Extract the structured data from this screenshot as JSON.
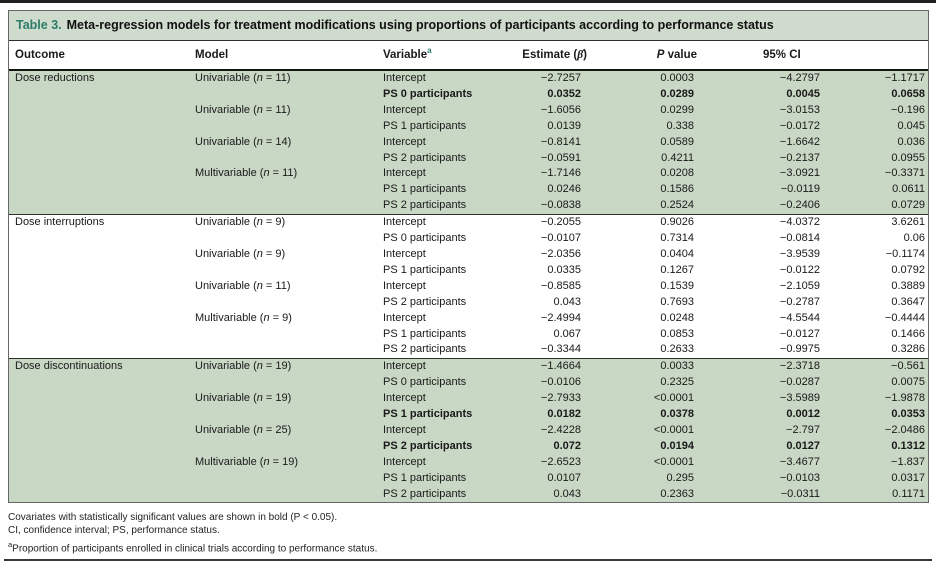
{
  "accent_colors": {
    "teal": "#2d7c6b",
    "band_green": "#c9d7c5",
    "title_bg": "#cfdbcc"
  },
  "table": {
    "title_label": "Table 3.",
    "title_text": "Meta-regression models for treatment modifications using proportions of participants according to performance status",
    "n_symbol": "n",
    "headers": {
      "outcome": "Outcome",
      "model": "Model",
      "variable": "Variable",
      "variable_sup": "a",
      "estimate_prefix": "Estimate (",
      "estimate_beta": "β̂",
      "estimate_suffix": ")",
      "p_italic": "P",
      "p_rest": " value",
      "ci": "95% CI"
    },
    "sections": [
      {
        "outcome": "Dose reductions",
        "shaded": true,
        "rows": [
          {
            "model": "Univariable",
            "n": "11",
            "variable": "Intercept",
            "estimate": "−2.7257",
            "p": "0.0003",
            "ci_low": "−4.2797",
            "ci_high": "−1.1717",
            "bold": false
          },
          {
            "model": "",
            "n": "",
            "variable": "PS 0 participants",
            "estimate": "0.0352",
            "p": "0.0289",
            "ci_low": "0.0045",
            "ci_high": "0.0658",
            "bold": true
          },
          {
            "model": "Univariable",
            "n": "11",
            "variable": "Intercept",
            "estimate": "−1.6056",
            "p": "0.0299",
            "ci_low": "−3.0153",
            "ci_high": "−0.196",
            "bold": false
          },
          {
            "model": "",
            "n": "",
            "variable": "PS 1 participants",
            "estimate": "0.0139",
            "p": "0.338",
            "ci_low": "−0.0172",
            "ci_high": "0.045",
            "bold": false
          },
          {
            "model": "Univariable",
            "n": "14",
            "variable": "Intercept",
            "estimate": "−0.8141",
            "p": "0.0589",
            "ci_low": "−1.6642",
            "ci_high": "0.036",
            "bold": false
          },
          {
            "model": "",
            "n": "",
            "variable": "PS 2 participants",
            "estimate": "−0.0591",
            "p": "0.4211",
            "ci_low": "−0.2137",
            "ci_high": "0.0955",
            "bold": false
          },
          {
            "model": "Multivariable",
            "n": "11",
            "variable": "Intercept",
            "estimate": "−1.7146",
            "p": "0.0208",
            "ci_low": "−3.0921",
            "ci_high": "−0.3371",
            "bold": false
          },
          {
            "model": "",
            "n": "",
            "variable": "PS 1 participants",
            "estimate": "0.0246",
            "p": "0.1586",
            "ci_low": "−0.0119",
            "ci_high": "0.0611",
            "bold": false
          },
          {
            "model": "",
            "n": "",
            "variable": "PS 2 participants",
            "estimate": "−0.0838",
            "p": "0.2524",
            "ci_low": "−0.2406",
            "ci_high": "0.0729",
            "bold": false
          }
        ]
      },
      {
        "outcome": "Dose interruptions",
        "shaded": false,
        "rows": [
          {
            "model": "Univariable",
            "n": "9",
            "variable": "Intercept",
            "estimate": "−0.2055",
            "p": "0.9026",
            "ci_low": "−4.0372",
            "ci_high": "3.6261",
            "bold": false
          },
          {
            "model": "",
            "n": "",
            "variable": "PS 0 participants",
            "estimate": "−0.0107",
            "p": "0.7314",
            "ci_low": "−0.0814",
            "ci_high": "0.06",
            "bold": false
          },
          {
            "model": "Univariable",
            "n": "9",
            "variable": "Intercept",
            "estimate": "−2.0356",
            "p": "0.0404",
            "ci_low": "−3.9539",
            "ci_high": "−0.1174",
            "bold": false
          },
          {
            "model": "",
            "n": "",
            "variable": "PS 1 participants",
            "estimate": "0.0335",
            "p": "0.1267",
            "ci_low": "−0.0122",
            "ci_high": "0.0792",
            "bold": false
          },
          {
            "model": "Univariable",
            "n": "11",
            "variable": "Intercept",
            "estimate": "−0.8585",
            "p": "0.1539",
            "ci_low": "−2.1059",
            "ci_high": "0.3889",
            "bold": false
          },
          {
            "model": "",
            "n": "",
            "variable": "PS 2 participants",
            "estimate": "0.043",
            "p": "0.7693",
            "ci_low": "−0.2787",
            "ci_high": "0.3647",
            "bold": false
          },
          {
            "model": "Multivariable",
            "n": "9",
            "variable": "Intercept",
            "estimate": "−2.4994",
            "p": "0.0248",
            "ci_low": "−4.5544",
            "ci_high": "−0.4444",
            "bold": false
          },
          {
            "model": "",
            "n": "",
            "variable": "PS 1 participants",
            "estimate": "0.067",
            "p": "0.0853",
            "ci_low": "−0.0127",
            "ci_high": "0.1466",
            "bold": false
          },
          {
            "model": "",
            "n": "",
            "variable": "PS 2 participants",
            "estimate": "−0.3344",
            "p": "0.2633",
            "ci_low": "−0.9975",
            "ci_high": "0.3286",
            "bold": false
          }
        ]
      },
      {
        "outcome": "Dose discontinuations",
        "shaded": true,
        "rows": [
          {
            "model": "Univariable",
            "n": "19",
            "variable": "Intercept",
            "estimate": "−1.4664",
            "p": "0.0033",
            "ci_low": "−2.3718",
            "ci_high": "−0.561",
            "bold": false
          },
          {
            "model": "",
            "n": "",
            "variable": "PS 0 participants",
            "estimate": "−0.0106",
            "p": "0.2325",
            "ci_low": "−0.0287",
            "ci_high": "0.0075",
            "bold": false
          },
          {
            "model": "Univariable",
            "n": "19",
            "variable": "Intercept",
            "estimate": "−2.7933",
            "p": "<0.0001",
            "ci_low": "−3.5989",
            "ci_high": "−1.9878",
            "bold": false
          },
          {
            "model": "",
            "n": "",
            "variable": "PS 1 participants",
            "estimate": "0.0182",
            "p": "0.0378",
            "ci_low": "0.0012",
            "ci_high": "0.0353",
            "bold": true
          },
          {
            "model": "Univariable",
            "n": "25",
            "variable": "Intercept",
            "estimate": "−2.4228",
            "p": "<0.0001",
            "ci_low": "−2.797",
            "ci_high": "−2.0486",
            "bold": false
          },
          {
            "model": "",
            "n": "",
            "variable": "PS 2 participants",
            "estimate": "0.072",
            "p": "0.0194",
            "ci_low": "0.0127",
            "ci_high": "0.1312",
            "bold": true
          },
          {
            "model": "Multivariable",
            "n": "19",
            "variable": "Intercept",
            "estimate": "−2.6523",
            "p": "<0.0001",
            "ci_low": "−3.4677",
            "ci_high": "−1.837",
            "bold": false
          },
          {
            "model": "",
            "n": "",
            "variable": "PS 1 participants",
            "estimate": "0.0107",
            "p": "0.295",
            "ci_low": "−0.0103",
            "ci_high": "0.0317",
            "bold": false
          },
          {
            "model": "",
            "n": "",
            "variable": "PS 2 participants",
            "estimate": "0.043",
            "p": "0.2363",
            "ci_low": "−0.0311",
            "ci_high": "0.1171",
            "bold": false
          }
        ]
      }
    ]
  },
  "footnotes": {
    "line1": "Covariates with statistically significant values are shown in bold (P < 0.05).",
    "line2": "CI, confidence interval; PS, performance status.",
    "line3_sup": "a",
    "line3_text": "Proportion of participants enrolled in clinical trials according to performance status."
  }
}
